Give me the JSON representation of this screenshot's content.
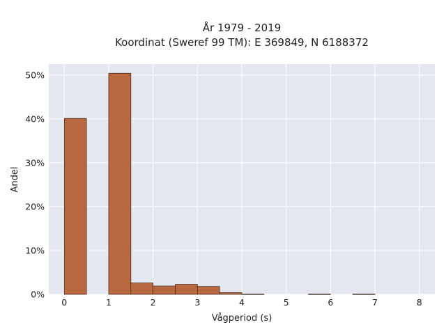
{
  "chart_data": {
    "type": "bar",
    "title_line1": "År 1979 - 2019",
    "title_line2": "Koordinat (Sweref 99 TM): E 369849, N 6188372",
    "xlabel": "Vågperiod (s)",
    "ylabel": "Andel",
    "xlim": [
      -0.35,
      8.35
    ],
    "ylim": [
      0,
      52.5
    ],
    "x_ticks": [
      {
        "value": 0,
        "label": "0"
      },
      {
        "value": 1,
        "label": "1"
      },
      {
        "value": 2,
        "label": "2"
      },
      {
        "value": 3,
        "label": "3"
      },
      {
        "value": 4,
        "label": "4"
      },
      {
        "value": 5,
        "label": "5"
      },
      {
        "value": 6,
        "label": "6"
      },
      {
        "value": 7,
        "label": "7"
      },
      {
        "value": 8,
        "label": "8"
      }
    ],
    "y_ticks": [
      {
        "value": 0,
        "label": "0%"
      },
      {
        "value": 10,
        "label": "10%"
      },
      {
        "value": 20,
        "label": "20%"
      },
      {
        "value": 30,
        "label": "30%"
      },
      {
        "value": 40,
        "label": "40%"
      },
      {
        "value": 50,
        "label": "50%"
      }
    ],
    "bin_width": 0.5,
    "bins": [
      {
        "start": 0.0,
        "value": 40.1
      },
      {
        "start": 1.0,
        "value": 50.4
      },
      {
        "start": 1.5,
        "value": 2.6
      },
      {
        "start": 2.0,
        "value": 1.9
      },
      {
        "start": 2.5,
        "value": 2.3
      },
      {
        "start": 3.0,
        "value": 1.8
      },
      {
        "start": 3.5,
        "value": 0.4
      },
      {
        "start": 4.0,
        "value": 0.05
      },
      {
        "start": 5.5,
        "value": 0.05
      },
      {
        "start": 6.5,
        "value": 0.05
      }
    ],
    "grid": true,
    "colors": {
      "bar_fill": "#b8693f",
      "bar_stroke": "#3a2418",
      "plot_bg": "#e5e7f0",
      "grid": "#ffffff"
    }
  }
}
